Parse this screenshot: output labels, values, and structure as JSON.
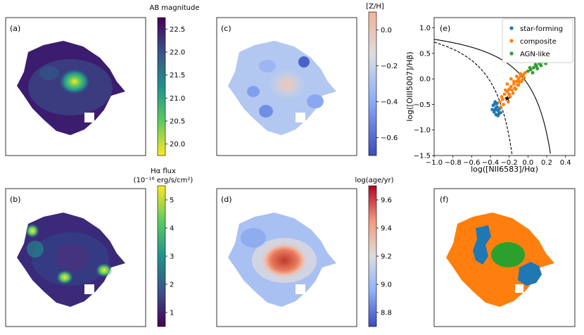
{
  "panels": {
    "a": {
      "label": "(a)",
      "colorbar": {
        "title": "AB magnitude",
        "ticks": [
          "22.5",
          "22.0",
          "21.5",
          "21.0",
          "20.5",
          "20.0"
        ]
      }
    },
    "b": {
      "label": "(b)",
      "colorbar": {
        "title_line1": "Hα flux",
        "title_line2": "(10⁻¹⁶ erg/s/cm²)",
        "ticks": [
          "5",
          "4",
          "3",
          "2",
          "1"
        ]
      }
    },
    "c": {
      "label": "(c)",
      "colorbar": {
        "title": "[Z/H]",
        "ticks": [
          "0.0",
          "−0.2",
          "−0.4",
          "−0.6"
        ]
      }
    },
    "d": {
      "label": "(d)",
      "colorbar": {
        "title": "log(age/yr)",
        "ticks": [
          "9.6",
          "9.4",
          "9.2",
          "9.0",
          "8.8"
        ]
      }
    },
    "e": {
      "label": "(e)"
    },
    "f": {
      "label": "(f)"
    }
  },
  "colors": {
    "star_forming": "#1f77b4",
    "composite": "#ff7f0e",
    "agn_like": "#2ca02c",
    "viridis_dark": "#440154",
    "viridis_yellow": "#fde725",
    "coolwarm_blue": "#3b4cc0",
    "coolwarm_red": "#b40426"
  },
  "chart_data": {
    "type": "scatter",
    "panel": "(e)",
    "xlabel": "log([NII6583]/Hα)",
    "ylabel": "log([OIII5007]/Hβ)",
    "xlim": [
      -1.0,
      0.5
    ],
    "ylim": [
      -1.5,
      1.2
    ],
    "xticks": [
      "−1.0",
      "−0.8",
      "−0.6",
      "−0.4",
      "−0.2",
      "0.0",
      "0.2",
      "0.4"
    ],
    "yticks": [
      "1.0",
      "0.5",
      "0.0",
      "−0.5",
      "−1.0",
      "−1.5"
    ],
    "legend": {
      "position": "top-right",
      "entries": [
        "star-forming",
        "composite",
        "AGN-like"
      ]
    },
    "series": [
      {
        "name": "star-forming",
        "points": [
          [
            -0.35,
            -0.6
          ],
          [
            -0.33,
            -0.55
          ],
          [
            -0.36,
            -0.65
          ],
          [
            -0.34,
            -0.7
          ],
          [
            -0.32,
            -0.62
          ],
          [
            -0.3,
            -0.58
          ],
          [
            -0.37,
            -0.52
          ],
          [
            -0.33,
            -0.48
          ],
          [
            -0.31,
            -0.68
          ],
          [
            -0.35,
            -0.45
          ],
          [
            -0.38,
            -0.6
          ],
          [
            -0.29,
            -0.66
          ],
          [
            -0.34,
            -0.57
          ],
          [
            -0.32,
            -0.72
          ],
          [
            -0.36,
            -0.5
          ]
        ]
      },
      {
        "name": "composite",
        "points": [
          [
            -0.3,
            -0.45
          ],
          [
            -0.28,
            -0.35
          ],
          [
            -0.25,
            -0.3
          ],
          [
            -0.22,
            -0.25
          ],
          [
            -0.2,
            -0.2
          ],
          [
            -0.18,
            -0.15
          ],
          [
            -0.15,
            -0.1
          ],
          [
            -0.12,
            -0.05
          ],
          [
            -0.1,
            0.0
          ],
          [
            -0.08,
            0.05
          ],
          [
            -0.05,
            0.08
          ],
          [
            -0.03,
            0.12
          ],
          [
            -0.27,
            -0.4
          ],
          [
            -0.24,
            -0.22
          ],
          [
            -0.2,
            -0.3
          ],
          [
            -0.17,
            -0.22
          ],
          [
            -0.14,
            -0.18
          ],
          [
            -0.11,
            -0.12
          ],
          [
            -0.09,
            -0.06
          ],
          [
            -0.06,
            -0.02
          ],
          [
            -0.23,
            -0.38
          ],
          [
            -0.26,
            -0.5
          ],
          [
            -0.21,
            -0.45
          ],
          [
            -0.19,
            -0.35
          ],
          [
            -0.16,
            -0.28
          ],
          [
            -0.13,
            -0.2
          ],
          [
            -0.1,
            -0.12
          ],
          [
            -0.07,
            -0.05
          ],
          [
            -0.04,
            0.02
          ],
          [
            -0.29,
            -0.55
          ],
          [
            -0.22,
            -0.1
          ],
          [
            -0.18,
            0.0
          ],
          [
            -0.15,
            -0.05
          ],
          [
            -0.12,
            0.05
          ],
          [
            -0.08,
            0.1
          ]
        ],
        "highlight": [
          -0.22,
          -0.38
        ]
      },
      {
        "name": "AGN-like",
        "points": [
          [
            0.0,
            0.15
          ],
          [
            0.03,
            0.18
          ],
          [
            0.06,
            0.22
          ],
          [
            0.09,
            0.25
          ],
          [
            0.12,
            0.3
          ],
          [
            0.15,
            0.33
          ],
          [
            0.18,
            0.36
          ],
          [
            0.21,
            0.4
          ],
          [
            0.24,
            0.43
          ],
          [
            0.27,
            0.48
          ],
          [
            0.3,
            0.52
          ],
          [
            0.33,
            0.58
          ],
          [
            0.05,
            0.12
          ],
          [
            0.1,
            0.2
          ],
          [
            0.14,
            0.26
          ],
          [
            0.19,
            0.3
          ],
          [
            0.23,
            0.35
          ],
          [
            0.28,
            0.4
          ],
          [
            0.32,
            0.45
          ],
          [
            0.08,
            0.28
          ],
          [
            0.13,
            0.35
          ],
          [
            0.2,
            0.45
          ],
          [
            0.26,
            0.55
          ],
          [
            0.02,
            0.22
          ],
          [
            0.17,
            0.42
          ]
        ]
      }
    ],
    "curves": [
      {
        "name": "kewley",
        "style": "solid"
      },
      {
        "name": "kauffmann",
        "style": "dashed"
      }
    ]
  }
}
